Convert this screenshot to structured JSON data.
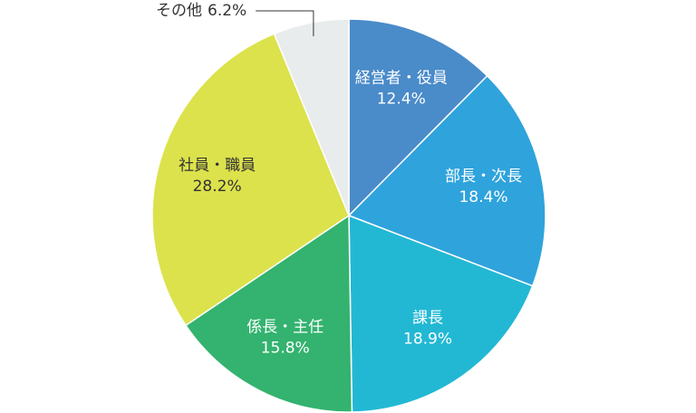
{
  "chart_data": {
    "type": "pie",
    "categories": [
      "経営者・役員",
      "部長・次長",
      "課長",
      "係長・主任",
      "社員・職員",
      "その他"
    ],
    "values": [
      12.4,
      18.4,
      18.9,
      15.8,
      28.2,
      6.2
    ],
    "value_labels": [
      "12.4%",
      "18.4%",
      "18.9%",
      "15.8%",
      "28.2%",
      "6.2%"
    ],
    "colors": [
      "#4a8bc9",
      "#2fa3dc",
      "#22b8d4",
      "#33b36f",
      "#dce24c",
      "#e8ecec"
    ],
    "label_colors": [
      "#ffffff",
      "#ffffff",
      "#ffffff",
      "#ffffff",
      "#333333",
      "#333333"
    ]
  }
}
